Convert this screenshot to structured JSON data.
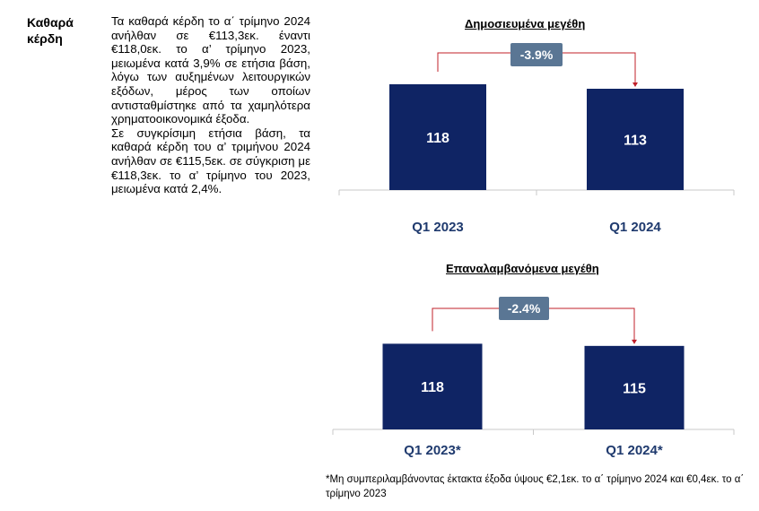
{
  "section_label": "Καθαρά κέρδη",
  "paragraphs": [
    "Τα καθαρά κέρδη το α΄ τρίμηνο 2024 ανήλθαν σε €113,3εκ. έναντι €118,0εκ. το α’ τρίμηνο 2023, μειωμένα κατά 3,9% σε ετήσια βάση, λόγω των αυξημένων λειτουργικών εξόδων, μέρος των οποίων αντισταθμίστηκε από τα χαμηλότερα χρηματοοικονομικά έξοδα.",
    "Σε συγκρίσιμη ετήσια βάση, τα καθαρά κέρδη του α’ τριμήνου 2024 ανήλθαν σε €115,5εκ. σε σύγκριση με €118,3εκ. το α’ τρίμηνο του 2023, μειωμένα κατά 2,4%."
  ],
  "footnote": "*Μη συμπεριλαμβάνοντας έκτακτα έξοδα ύψους €2,1εκ. το α΄ τρίμηνο 2024 και €0,4εκ. το α΄ τρίμηνο 2023",
  "colors": {
    "bar": "#0f2464",
    "bracket": "#c0202a",
    "pct_box": "#5a7694",
    "axis_label": "#1f3a6e"
  },
  "chart_data": [
    {
      "type": "bar",
      "title": "Δημοσιευμένα μεγέθη",
      "categories": [
        "Q1 2023",
        "Q1 2024"
      ],
      "values": [
        118,
        113
      ],
      "change_label": "-3.9%"
    },
    {
      "type": "bar",
      "title": "Επαναλαμβανόμενα μεγέθη",
      "categories": [
        "Q1 2023*",
        "Q1 2024*"
      ],
      "values": [
        118,
        115
      ],
      "change_label": "-2.4%"
    }
  ]
}
